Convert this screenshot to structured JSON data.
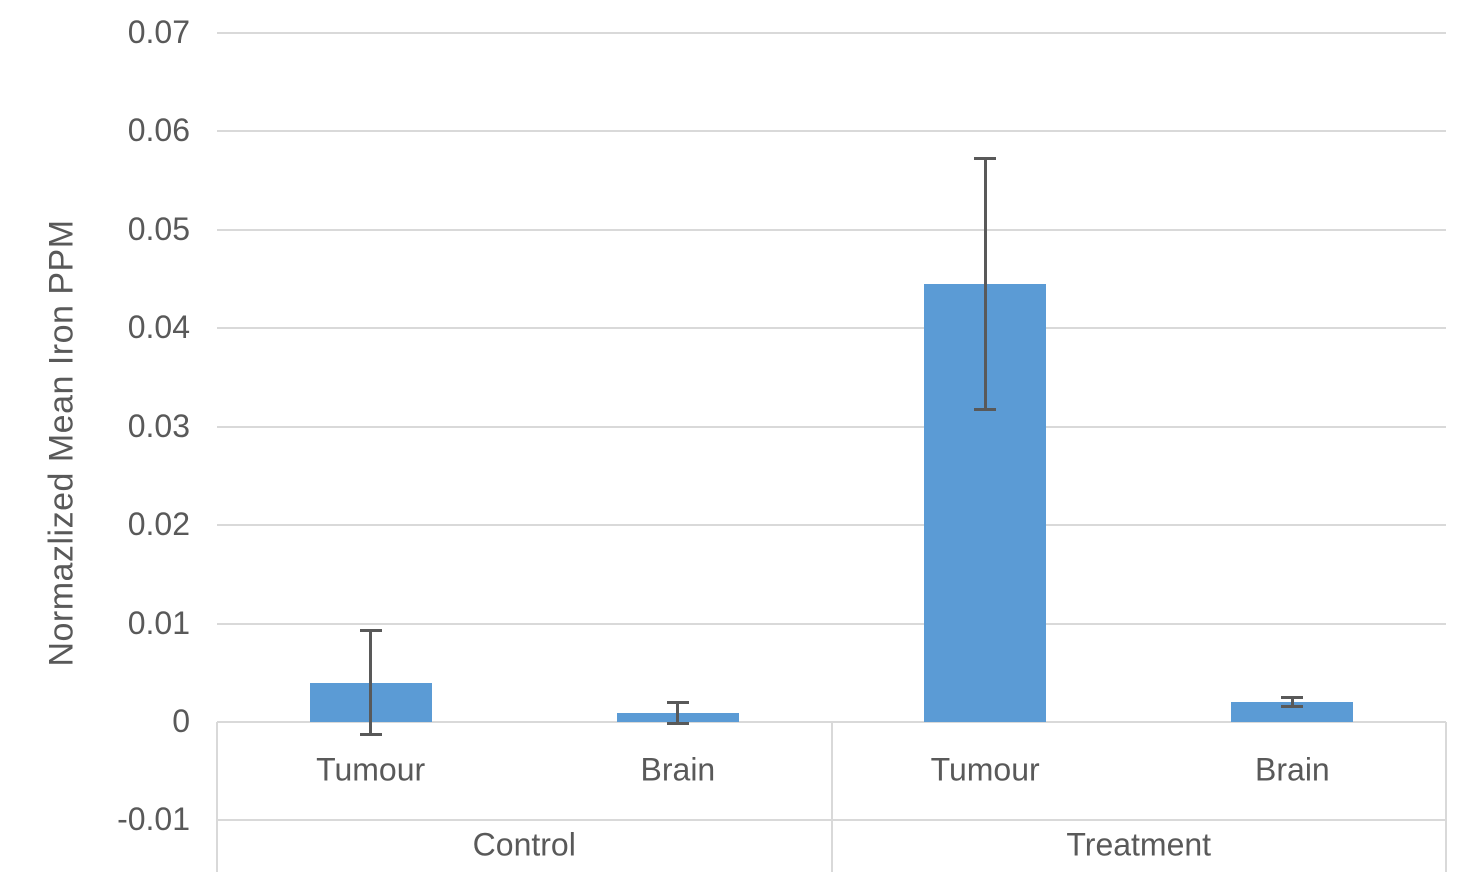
{
  "chart_data": {
    "type": "bar",
    "title": "",
    "xlabel": "",
    "ylabel": "Normazlized Mean Iron PPM",
    "ylim": [
      -0.01,
      0.07
    ],
    "grid": true,
    "legend": false,
    "yticks": [
      {
        "value": -0.01,
        "label": "-0.01"
      },
      {
        "value": 0,
        "label": "0"
      },
      {
        "value": 0.01,
        "label": "0.01"
      },
      {
        "value": 0.02,
        "label": "0.02"
      },
      {
        "value": 0.03,
        "label": "0.03"
      },
      {
        "value": 0.04,
        "label": "0.04"
      },
      {
        "value": 0.05,
        "label": "0.05"
      },
      {
        "value": 0.06,
        "label": "0.06"
      },
      {
        "value": 0.07,
        "label": "0.07"
      }
    ],
    "groups": [
      {
        "label": "Control",
        "bars": [
          {
            "label": "Tumour",
            "value": 0.004,
            "error": 0.0053
          },
          {
            "label": "Brain",
            "value": 0.0009,
            "error": 0.0011
          }
        ]
      },
      {
        "label": "Treatment",
        "bars": [
          {
            "label": "Tumour",
            "value": 0.0445,
            "error": 0.0128
          },
          {
            "label": "Brain",
            "value": 0.002,
            "error": 0.0005
          }
        ]
      }
    ],
    "colors": {
      "bar": "#5B9BD5",
      "error_bar": "#595959",
      "gridline": "#D9D9D9",
      "axis_box": "#D9D9D9",
      "text": "#595959"
    }
  }
}
